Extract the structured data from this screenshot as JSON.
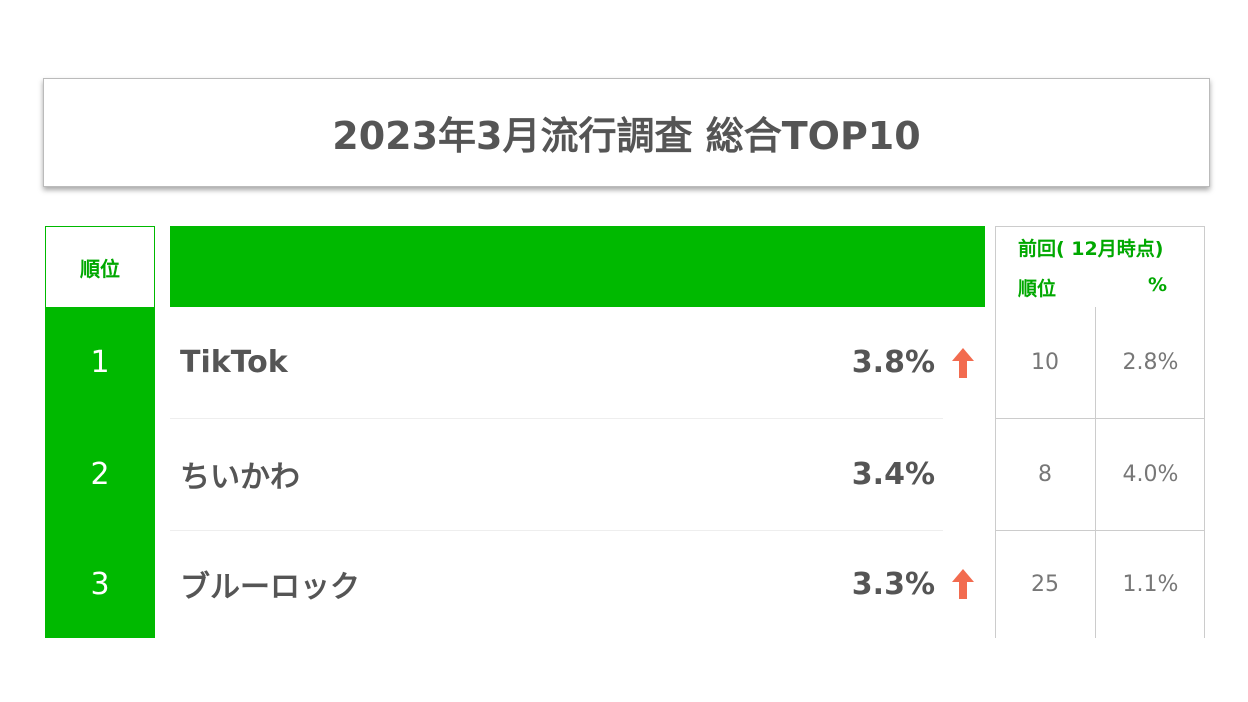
{
  "header": {
    "title": "2023年3月流行調査 総合TOP10"
  },
  "table": {
    "rank_header": "順位",
    "previous_header": {
      "title": "前回( 12月時点)",
      "rank": "順位",
      "percent": "%"
    },
    "rows": [
      {
        "rank": "1",
        "name": "TikTok",
        "percent": "3.8%",
        "up": true,
        "previous_rank": "10",
        "previous_percent": "2.8%"
      },
      {
        "rank": "2",
        "name": "ちいかわ",
        "percent": "3.4%",
        "up": false,
        "previous_rank": "8",
        "previous_percent": "4.0%"
      },
      {
        "rank": "3",
        "name": "ブルーロック",
        "percent": "3.3%",
        "up": true,
        "previous_rank": "25",
        "previous_percent": "1.1%"
      }
    ]
  }
}
